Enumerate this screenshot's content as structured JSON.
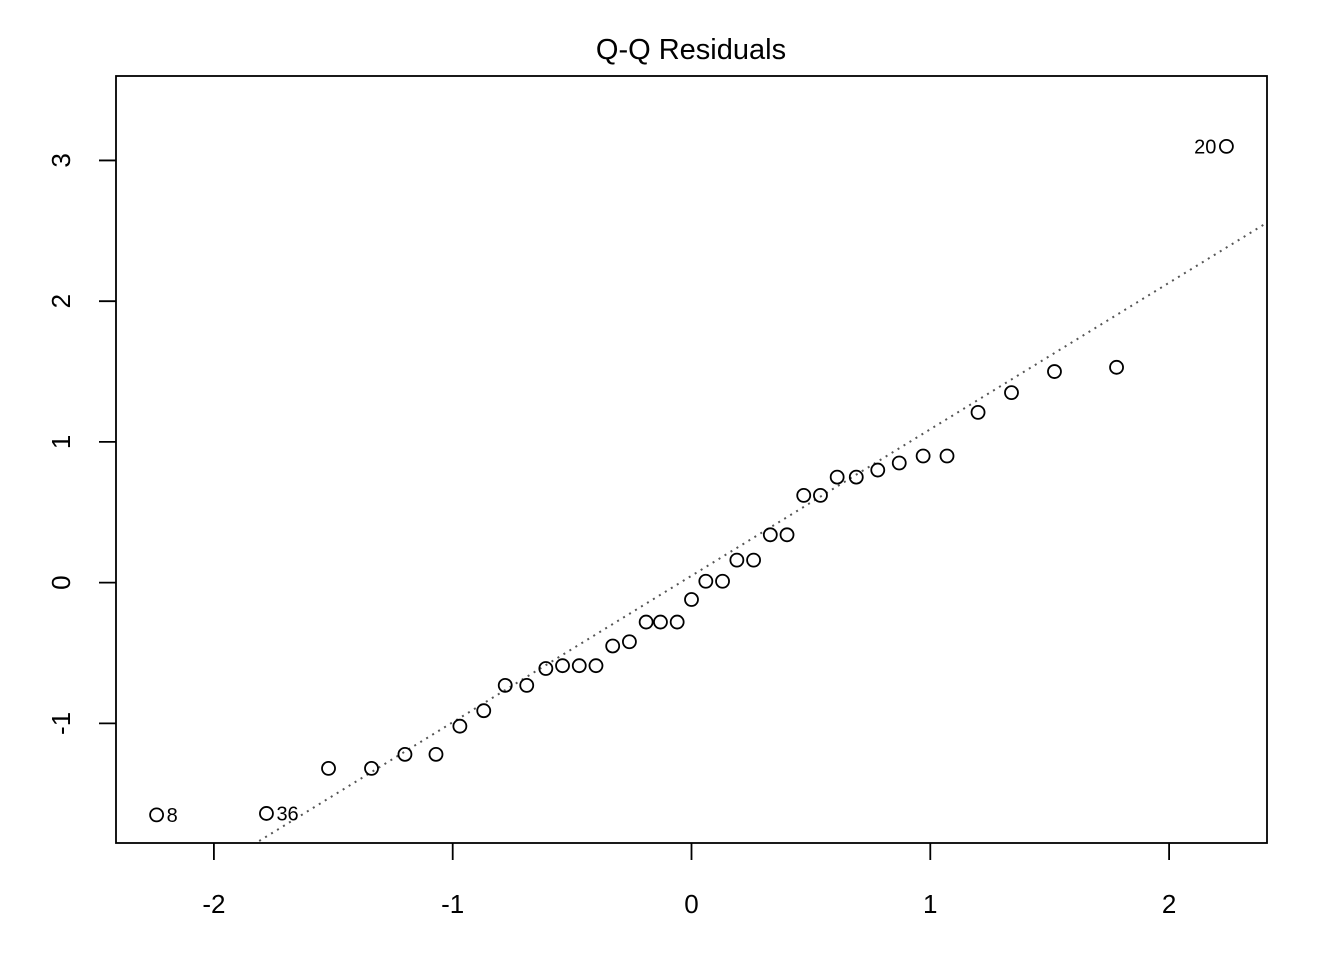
{
  "chart_data": {
    "type": "scatter",
    "title": "Q-Q Residuals",
    "xlabel": "",
    "ylabel": "",
    "xlim": [
      -2.41,
      2.41
    ],
    "ylim": [
      -1.85,
      3.6
    ],
    "x_ticks": [
      -2,
      -1,
      0,
      1,
      2
    ],
    "y_ticks": [
      -1,
      0,
      1,
      2,
      3
    ],
    "x_tick_labels": [
      "-2",
      "-1",
      "0",
      "1",
      "2"
    ],
    "y_tick_labels": [
      "-1",
      "0",
      "1",
      "2",
      "3"
    ],
    "grid": false,
    "legend": "none",
    "point_style": "open-circle",
    "colors": {
      "points": "#000000",
      "reference_line": "#555555",
      "axes": "#000000"
    },
    "reference_line": {
      "style": "dotted",
      "intercept": 0.049,
      "slope": 1.041
    },
    "points": [
      {
        "x": -2.24,
        "y": -1.65
      },
      {
        "x": -1.78,
        "y": -1.64
      },
      {
        "x": -1.52,
        "y": -1.32
      },
      {
        "x": -1.34,
        "y": -1.32
      },
      {
        "x": -1.2,
        "y": -1.22
      },
      {
        "x": -1.07,
        "y": -1.22
      },
      {
        "x": -0.97,
        "y": -1.02
      },
      {
        "x": -0.87,
        "y": -0.91
      },
      {
        "x": -0.78,
        "y": -0.73
      },
      {
        "x": -0.69,
        "y": -0.73
      },
      {
        "x": -0.61,
        "y": -0.61
      },
      {
        "x": -0.54,
        "y": -0.59
      },
      {
        "x": -0.47,
        "y": -0.59
      },
      {
        "x": -0.4,
        "y": -0.59
      },
      {
        "x": -0.33,
        "y": -0.45
      },
      {
        "x": -0.26,
        "y": -0.42
      },
      {
        "x": -0.19,
        "y": -0.28
      },
      {
        "x": -0.13,
        "y": -0.28
      },
      {
        "x": -0.06,
        "y": -0.28
      },
      {
        "x": 0.0,
        "y": -0.12
      },
      {
        "x": 0.06,
        "y": 0.01
      },
      {
        "x": 0.13,
        "y": 0.01
      },
      {
        "x": 0.19,
        "y": 0.16
      },
      {
        "x": 0.26,
        "y": 0.16
      },
      {
        "x": 0.33,
        "y": 0.34
      },
      {
        "x": 0.4,
        "y": 0.34
      },
      {
        "x": 0.47,
        "y": 0.62
      },
      {
        "x": 0.54,
        "y": 0.62
      },
      {
        "x": 0.61,
        "y": 0.75
      },
      {
        "x": 0.69,
        "y": 0.75
      },
      {
        "x": 0.78,
        "y": 0.8
      },
      {
        "x": 0.87,
        "y": 0.85
      },
      {
        "x": 0.97,
        "y": 0.9
      },
      {
        "x": 1.07,
        "y": 0.9
      },
      {
        "x": 1.2,
        "y": 1.21
      },
      {
        "x": 1.34,
        "y": 1.35
      },
      {
        "x": 1.52,
        "y": 1.5
      },
      {
        "x": 1.78,
        "y": 1.53
      },
      {
        "x": 2.24,
        "y": 3.1
      }
    ],
    "annotations": [
      {
        "text": "8",
        "x": -2.24,
        "y": -1.65,
        "side": "right"
      },
      {
        "text": "36",
        "x": -1.78,
        "y": -1.64,
        "side": "right"
      },
      {
        "text": "20",
        "x": 2.24,
        "y": 3.1,
        "side": "left"
      }
    ]
  }
}
